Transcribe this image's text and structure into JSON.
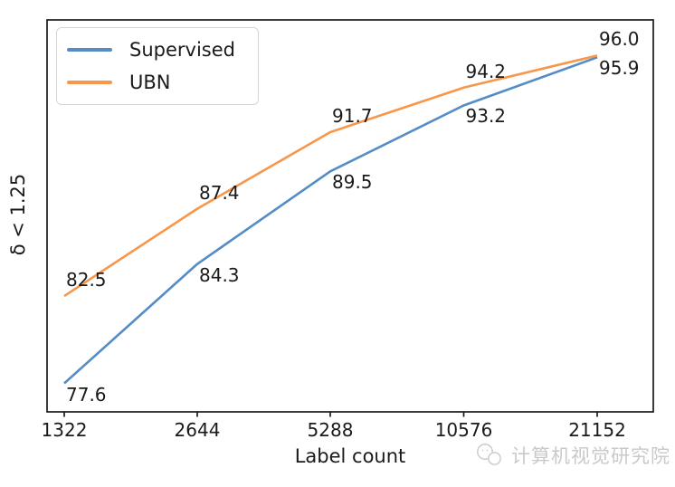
{
  "figure": {
    "background": "#ffffff",
    "spine_color": "#1a1a1a",
    "text_color": "#1a1a1a"
  },
  "chart_data": {
    "type": "line",
    "title": "",
    "xlabel": "Label count",
    "ylabel": "δ < 1.25",
    "x_scale": "log2 (each tick doubles, ticks equally spaced)",
    "categories": [
      "1322",
      "2644",
      "5288",
      "10576",
      "21152"
    ],
    "x": [
      1322,
      2644,
      5288,
      10576,
      21152
    ],
    "series": [
      {
        "name": "Supervised",
        "color": "#548cc6",
        "values": [
          77.6,
          84.3,
          89.5,
          93.2,
          95.9
        ],
        "point_label_side": "below"
      },
      {
        "name": "UBN",
        "color": "#f8964a",
        "values": [
          82.5,
          87.4,
          91.7,
          94.2,
          96.0
        ],
        "point_label_side": "above"
      }
    ],
    "ylim": [
      76,
      98
    ],
    "grid": false,
    "legend_position": "upper left",
    "point_labels_visible": true
  },
  "watermark": {
    "text": "计算机视觉研究院",
    "color": "#c9c9c9",
    "icon": "wechat-logo-icon"
  }
}
